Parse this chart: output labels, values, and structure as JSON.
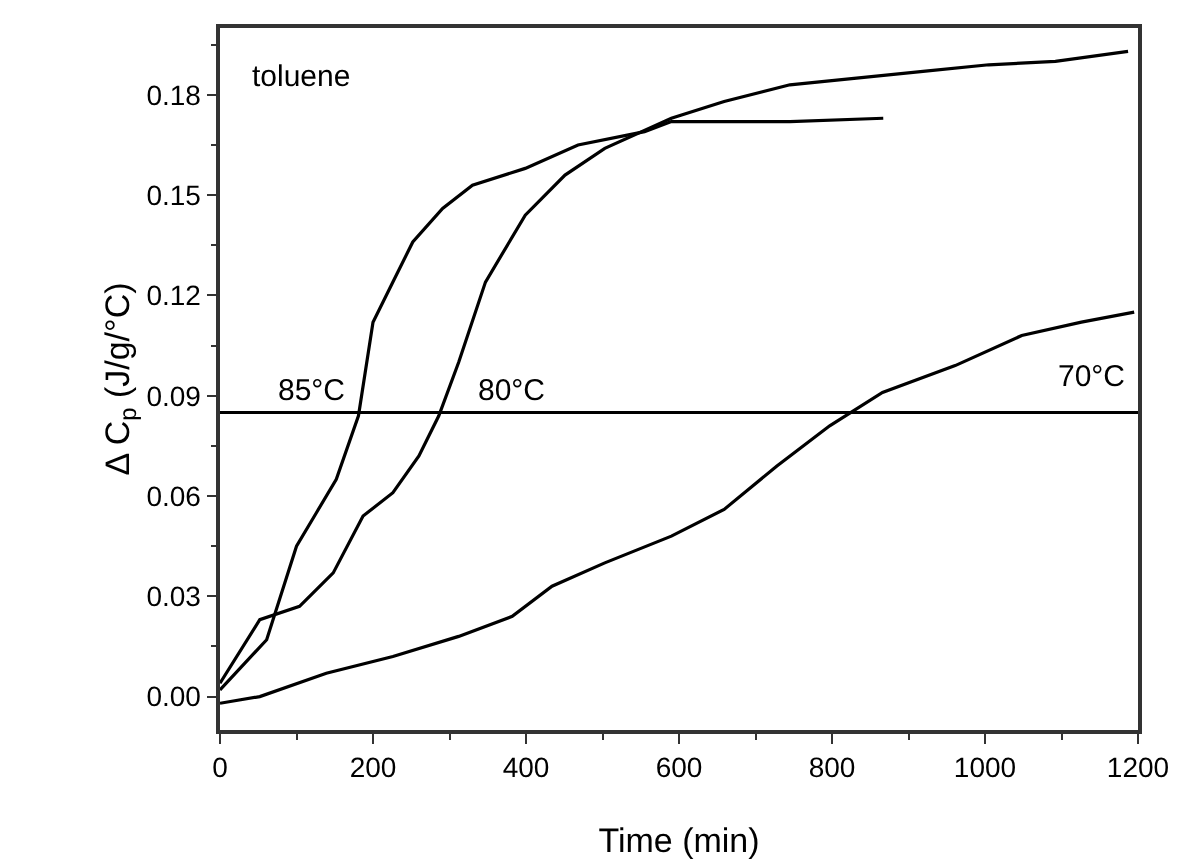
{
  "chart_data": {
    "type": "line",
    "xlabel": "Time (min)",
    "ylabel": "Δ C$_{p}$ (J/g/°C)",
    "xlim": [
      0,
      1200
    ],
    "xticks": [
      0,
      200,
      400,
      600,
      800,
      1000,
      1200
    ],
    "ylim": [
      -0.01,
      0.2
    ],
    "yticks": [
      {
        "value": 0,
        "label": "0.00"
      },
      0.03,
      0.06,
      0.09,
      0.12,
      0.15,
      0.18
    ],
    "grid": false,
    "legend": false,
    "marker": "none",
    "line_style": "solid",
    "annotations": [
      "toluene"
    ],
    "ref_lines": [
      {
        "axis": "y",
        "value": 0.085,
        "color": "#000000"
      }
    ],
    "series": [
      {
        "name": "85°C",
        "color": "#000000",
        "x": [
          0,
          61,
          100,
          126,
          152,
          181,
          200,
          226,
          252,
          291,
          330,
          399,
          468,
          555,
          590,
          659,
          745,
          867
        ],
        "values": [
          0.002,
          0.017,
          0.045,
          0.055,
          0.065,
          0.084,
          0.112,
          0.124,
          0.136,
          0.146,
          0.153,
          0.158,
          0.165,
          0.169,
          0.172,
          0.172,
          0.172,
          0.173
        ]
      },
      {
        "name": "80°C",
        "color": "#000000",
        "x": [
          0,
          52,
          104,
          148,
          187,
          226,
          260,
          286,
          312,
          347,
          399,
          451,
          503,
          590,
          659,
          745,
          832,
          919,
          1005,
          1092,
          1187
        ],
        "values": [
          0.004,
          0.023,
          0.027,
          0.037,
          0.054,
          0.061,
          0.072,
          0.084,
          0.1,
          0.124,
          0.144,
          0.156,
          0.164,
          0.173,
          0.178,
          0.183,
          0.185,
          0.187,
          0.189,
          0.19,
          0.193
        ]
      },
      {
        "name": "70°C",
        "color": "#000000",
        "x": [
          0,
          52,
          139,
          226,
          312,
          382,
          434,
          503,
          590,
          659,
          728,
          797,
          866,
          961,
          1048,
          1126,
          1195
        ],
        "values": [
          -0.002,
          0,
          0.007,
          0.012,
          0.018,
          0.024,
          0.033,
          0.04,
          0.048,
          0.056,
          0.069,
          0.081,
          0.091,
          0.099,
          0.108,
          0.112,
          0.115
        ]
      }
    ]
  }
}
